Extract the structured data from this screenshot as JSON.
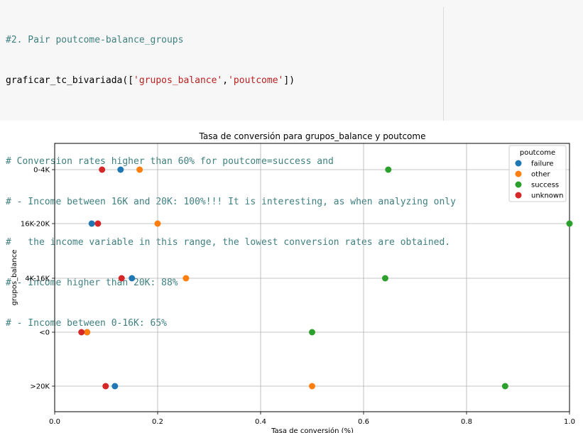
{
  "code": {
    "line1": "#2. Pair poutcome-balance_groups",
    "line2_func": "graficar_tc_bivariada",
    "line2_open": "([",
    "line2_arg1": "'grupos_balance'",
    "line2_comma": ",",
    "line2_arg2": "'poutcome'",
    "line2_close": "])",
    "comment1": "# Conversion rates higher than 60% for poutcome=success and",
    "comment2": "# - Income between 16K and 20K: 100%!!! It is interesting, as when analyzing only",
    "comment3": "#   the income variable in this range, the lowest conversion rates are obtained.",
    "comment4": "# - Income higher than 20K: 88%",
    "comment5": "# - Income between 0-16K: 65%"
  },
  "chart_data": {
    "type": "scatter",
    "title": "Tasa de conversión para grupos_balance y poutcome",
    "xlabel": "Tasa de conversión (%)",
    "ylabel": "grupos_balance",
    "categories": [
      "0-4K",
      "16K-20K",
      "4K-16K",
      "<0",
      ">20K"
    ],
    "xlim": [
      0,
      1
    ],
    "xticks": [
      "0.0",
      "0.2",
      "0.4",
      "0.6",
      "0.8",
      "1.0"
    ],
    "grid": true,
    "legend_title": "poutcome",
    "legend_position": "top-right",
    "series": [
      {
        "name": "failure",
        "color": "#1f77b4",
        "values": [
          0.128,
          0.072,
          0.15,
          0.063,
          0.117
        ]
      },
      {
        "name": "other",
        "color": "#ff7f0e",
        "values": [
          0.165,
          0.2,
          0.255,
          0.063,
          0.5
        ]
      },
      {
        "name": "success",
        "color": "#2ca02c",
        "values": [
          0.648,
          1.0,
          0.642,
          0.5,
          0.875
        ]
      },
      {
        "name": "unknown",
        "color": "#d62728",
        "values": [
          0.092,
          0.084,
          0.13,
          0.052,
          0.099
        ]
      }
    ]
  }
}
